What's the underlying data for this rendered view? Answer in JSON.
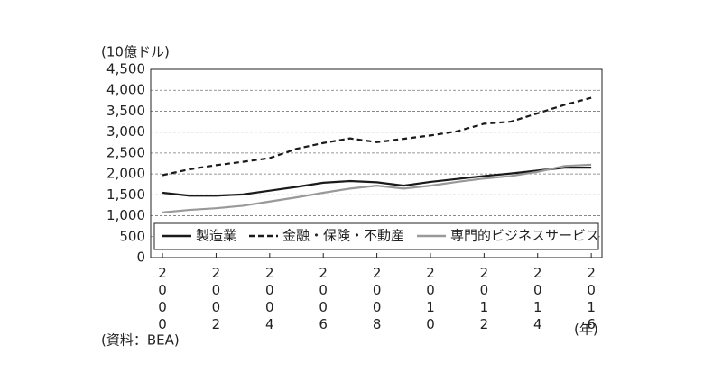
{
  "chart_data": {
    "type": "line",
    "y_unit_label": "(10億ドル)",
    "x_unit_label": "(年)",
    "source": "(資料：BEA)",
    "x": [
      2000,
      2001,
      2002,
      2003,
      2004,
      2005,
      2006,
      2007,
      2008,
      2009,
      2010,
      2011,
      2012,
      2013,
      2014,
      2015,
      2016
    ],
    "xlim": [
      1999.56,
      2016.4
    ],
    "xticks": [
      2000,
      2002,
      2004,
      2006,
      2008,
      2010,
      2012,
      2014,
      2016
    ],
    "ylim": [
      0,
      4500
    ],
    "yticks": [
      0,
      500,
      {
        "value": 1000,
        "label": "1,000"
      },
      {
        "value": 1500,
        "label": "1,500"
      },
      {
        "value": 2000,
        "label": "2,000"
      },
      {
        "value": 2500,
        "label": "2,500"
      },
      {
        "value": 3000,
        "label": "3,000"
      },
      {
        "value": 3500,
        "label": "3,500"
      },
      {
        "value": 4000,
        "label": "4,000"
      },
      {
        "value": 4500,
        "label": "4,500"
      }
    ],
    "grid": true,
    "legend_position": "bottom",
    "series": [
      {
        "name": "製造業",
        "color": "#1a1a1a",
        "line_style": "solid",
        "values": [
          1550,
          1480,
          1480,
          1510,
          1600,
          1690,
          1790,
          1830,
          1800,
          1720,
          1810,
          1880,
          1950,
          2010,
          2080,
          2150,
          2150
        ]
      },
      {
        "name": "金融・保険・不動産",
        "color": "#1a1a1a",
        "line_style": "dashed",
        "values": [
          1970,
          2110,
          2210,
          2290,
          2380,
          2600,
          2740,
          2850,
          2760,
          2840,
          2920,
          3020,
          3200,
          3250,
          3450,
          3650,
          3820
        ]
      },
      {
        "name": "専門的ビジネスサービス",
        "color": "#999999",
        "line_style": "solid",
        "values": [
          1080,
          1140,
          1180,
          1240,
          1340,
          1440,
          1550,
          1650,
          1720,
          1650,
          1720,
          1810,
          1890,
          1950,
          2050,
          2190,
          2220
        ]
      }
    ]
  }
}
